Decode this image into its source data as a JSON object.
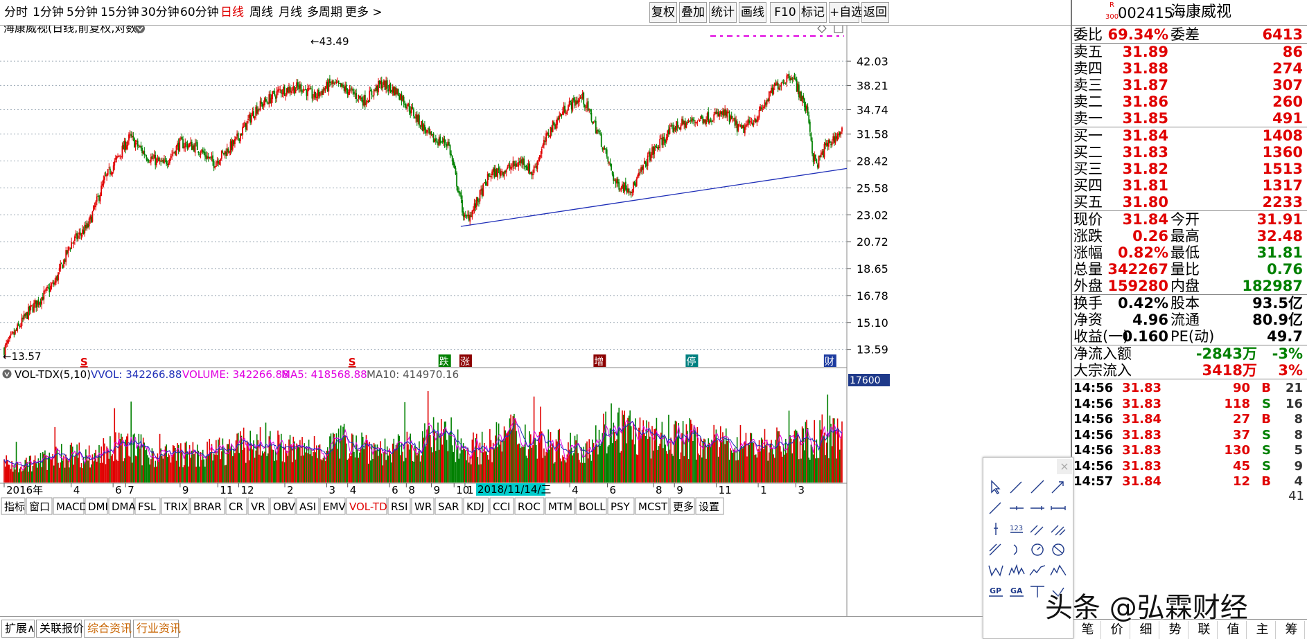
{
  "toolbar": {
    "periods": [
      "分时",
      "1分钟",
      "5分钟",
      "15分钟",
      "30分钟",
      "60分钟",
      "日线",
      "周线",
      "月线",
      "多周期",
      "更多 >"
    ],
    "active_period": "日线",
    "right": [
      "复权",
      "叠加",
      "统计",
      "画线",
      "F10",
      "标记",
      "+自选",
      "返回"
    ]
  },
  "chart": {
    "title": "海康威视(日线,前复权,对数)",
    "y_labels": [
      "42.03",
      "38.21",
      "34.74",
      "31.58",
      "28.42",
      "25.58",
      "23.02",
      "20.72",
      "18.65",
      "16.78",
      "15.10",
      "13.59"
    ],
    "max_label": "43.49",
    "min_label": "13.57",
    "markers": [
      {
        "text": "S",
        "color": "#e00000",
        "pos": 0.095
      },
      {
        "text": "S",
        "color": "#e00000",
        "pos": 0.415
      },
      {
        "text": "跌",
        "color": "#008000",
        "pos": 0.525
      },
      {
        "text": "涨",
        "color": "#8b0000",
        "pos": 0.55
      },
      {
        "text": "增",
        "color": "#8b0000",
        "pos": 0.71
      },
      {
        "text": "停",
        "color": "#008080",
        "pos": 0.82
      },
      {
        "text": "财",
        "color": "#1e3ca0",
        "pos": 0.985
      }
    ]
  },
  "volume": {
    "indicator": "VOL-TDX(5,10)",
    "vvol": "VVOL: 342266.88",
    "volume": "VOLUME: 342266.88",
    "ma5": "MA5: 418568.88",
    "ma10": "MA10: 414970.16",
    "axis_top": "17600"
  },
  "x_axis": {
    "labels": [
      "2016年",
      "4",
      "6",
      "7",
      "9",
      "11",
      "12",
      "2",
      "3",
      "4",
      "6",
      "8",
      "9",
      "10",
      "1",
      "4",
      "6",
      "8",
      "9",
      "11",
      "1",
      "3"
    ],
    "highlight": "2018/11/14/三"
  },
  "indicator_tabs": [
    "指标",
    "窗口",
    "MACD",
    "DMI",
    "DMA",
    "FSL",
    "TRIX",
    "BRAR",
    "CR",
    "VR",
    "OBV",
    "ASI",
    "EMV",
    "VOL-TDX",
    "RSI",
    "WR",
    "SAR",
    "KDJ",
    "CCI",
    "ROC",
    "MTM",
    "BOLL",
    "PSY",
    "MCST",
    "更多",
    "设置"
  ],
  "active_tab": "VOL-TDX",
  "bottom_tabs": [
    "扩展∧",
    "关联报价",
    "综合资讯",
    "行业资讯"
  ],
  "quote": {
    "code": "002415",
    "name": "海康威视",
    "badge_top": "R",
    "badge_bottom": "300",
    "wei": {
      "label1": "委比",
      "v1": "69.34%",
      "label2": "委差",
      "v2": "6413"
    },
    "sell": [
      {
        "l": "卖五",
        "p": "31.89",
        "v": "86"
      },
      {
        "l": "卖四",
        "p": "31.88",
        "v": "274"
      },
      {
        "l": "卖三",
        "p": "31.87",
        "v": "307"
      },
      {
        "l": "卖二",
        "p": "31.86",
        "v": "260"
      },
      {
        "l": "卖一",
        "p": "31.85",
        "v": "491"
      }
    ],
    "buy": [
      {
        "l": "买一",
        "p": "31.84",
        "v": "1408"
      },
      {
        "l": "买二",
        "p": "31.83",
        "v": "1360"
      },
      {
        "l": "买三",
        "p": "31.82",
        "v": "1513"
      },
      {
        "l": "买四",
        "p": "31.81",
        "v": "1317"
      },
      {
        "l": "买五",
        "p": "31.80",
        "v": "2233"
      }
    ],
    "stats1": [
      {
        "l1": "现价",
        "v1": "31.84",
        "c1": "red",
        "l2": "今开",
        "v2": "31.91",
        "c2": "red"
      },
      {
        "l1": "涨跌",
        "v1": "0.26",
        "c1": "red",
        "l2": "最高",
        "v2": "32.48",
        "c2": "red"
      },
      {
        "l1": "涨幅",
        "v1": "0.82%",
        "c1": "red",
        "l2": "最低",
        "v2": "31.81",
        "c2": "grn"
      },
      {
        "l1": "总量",
        "v1": "342267",
        "c1": "red",
        "l2": "量比",
        "v2": "0.76",
        "c2": "grn"
      },
      {
        "l1": "外盘",
        "v1": "159280",
        "c1": "red",
        "l2": "内盘",
        "v2": "182987",
        "c2": "grn"
      }
    ],
    "stats2": [
      {
        "l1": "换手",
        "v1": "0.42%",
        "l2": "股本",
        "v2": "93.5亿"
      },
      {
        "l1": "净资",
        "v1": "4.96",
        "l2": "流通",
        "v2": "80.9亿"
      },
      {
        "l1": "收益(一)",
        "v1": "0.160",
        "l2": "PE(动)",
        "v2": "49.7"
      }
    ],
    "flow": [
      {
        "l": "净流入额",
        "v": "-2843万",
        "p": "-3%",
        "c": "grn"
      },
      {
        "l": "大宗流入",
        "v": "3418万",
        "p": "3%",
        "c": "red"
      }
    ],
    "ticks": [
      {
        "t": "14:56",
        "p": "31.83",
        "v": "90",
        "s": "B",
        "n": "21"
      },
      {
        "t": "14:56",
        "p": "31.83",
        "v": "118",
        "s": "S",
        "n": "16"
      },
      {
        "t": "14:56",
        "p": "31.84",
        "v": "27",
        "s": "B",
        "n": "8"
      },
      {
        "t": "14:56",
        "p": "31.83",
        "v": "37",
        "s": "S",
        "n": "8"
      },
      {
        "t": "14:56",
        "p": "31.83",
        "v": "130",
        "s": "S",
        "n": "5"
      },
      {
        "t": "14:56",
        "p": "31.83",
        "v": "45",
        "s": "S",
        "n": "9"
      },
      {
        "t": "14:57",
        "p": "31.84",
        "v": "12",
        "s": "B",
        "n": "4"
      }
    ],
    "ticks_cut": "41",
    "side_tabs": [
      "笔",
      "价",
      "细",
      "势",
      "联",
      "值",
      "主",
      "筹"
    ]
  },
  "watermark": "头条 @弘霖财经",
  "chart_data": {
    "type": "candlestick",
    "series_name": "海康威视",
    "log_scale": true,
    "y_ticks": [
      42.03,
      38.21,
      34.74,
      31.58,
      28.42,
      25.58,
      23.02,
      20.72,
      18.65,
      16.78,
      15.1,
      13.59
    ],
    "y_range": [
      13.0,
      45.5
    ],
    "x_range": [
      "2016-01",
      "2019-04"
    ],
    "anchor_prices": [
      [
        0,
        13.6
      ],
      [
        0.03,
        15.8
      ],
      [
        0.06,
        17.6
      ],
      [
        0.08,
        20.6
      ],
      [
        0.1,
        22
      ],
      [
        0.12,
        26.4
      ],
      [
        0.15,
        31.2
      ],
      [
        0.17,
        29
      ],
      [
        0.19,
        28
      ],
      [
        0.21,
        30.5
      ],
      [
        0.23,
        30
      ],
      [
        0.25,
        28.2
      ],
      [
        0.275,
        30.5
      ],
      [
        0.3,
        34.8
      ],
      [
        0.33,
        37.5
      ],
      [
        0.355,
        38
      ],
      [
        0.37,
        36.5
      ],
      [
        0.39,
        38.5
      ],
      [
        0.41,
        37.5
      ],
      [
        0.43,
        36
      ],
      [
        0.45,
        38.5
      ],
      [
        0.47,
        37.2
      ],
      [
        0.49,
        34
      ],
      [
        0.51,
        31
      ],
      [
        0.53,
        30.5
      ],
      [
        0.55,
        22.5
      ],
      [
        0.56,
        23.5
      ],
      [
        0.58,
        27
      ],
      [
        0.6,
        27.5
      ],
      [
        0.62,
        28.5
      ],
      [
        0.63,
        27
      ],
      [
        0.65,
        31.8
      ],
      [
        0.67,
        35
      ],
      [
        0.69,
        36.5
      ],
      [
        0.71,
        31.5
      ],
      [
        0.73,
        26
      ],
      [
        0.75,
        25.5
      ],
      [
        0.77,
        29
      ],
      [
        0.8,
        32.5
      ],
      [
        0.83,
        33.5
      ],
      [
        0.86,
        34.2
      ],
      [
        0.88,
        32
      ],
      [
        0.9,
        34
      ],
      [
        0.92,
        38
      ],
      [
        0.94,
        40
      ],
      [
        0.96,
        34
      ],
      [
        0.965,
        29
      ],
      [
        0.97,
        28
      ],
      [
        0.98,
        30
      ],
      [
        1.0,
        32
      ]
    ],
    "trendline": [
      [
        0.545,
        22.0
      ],
      [
        1.0,
        27.6
      ]
    ],
    "volume_ma": {
      "ma5": 418568.88,
      "ma10": 414970.16,
      "last": 342266.88
    },
    "volume_level": [
      0.22,
      0.2,
      0.25,
      0.3,
      0.35,
      0.3,
      0.4,
      0.42,
      0.38,
      0.3,
      0.35,
      0.32,
      0.36,
      0.4,
      0.45,
      0.48,
      0.4,
      0.38,
      0.42,
      0.45,
      0.5,
      0.42,
      0.36,
      0.4,
      0.48,
      0.55,
      0.45,
      0.4,
      0.45,
      0.6,
      0.52,
      0.45,
      0.42,
      0.4,
      0.55,
      0.7,
      0.6,
      0.5,
      0.55,
      0.52,
      0.5,
      0.45,
      0.48,
      0.44,
      0.46,
      0.45,
      0.5,
      0.55,
      0.5
    ]
  }
}
